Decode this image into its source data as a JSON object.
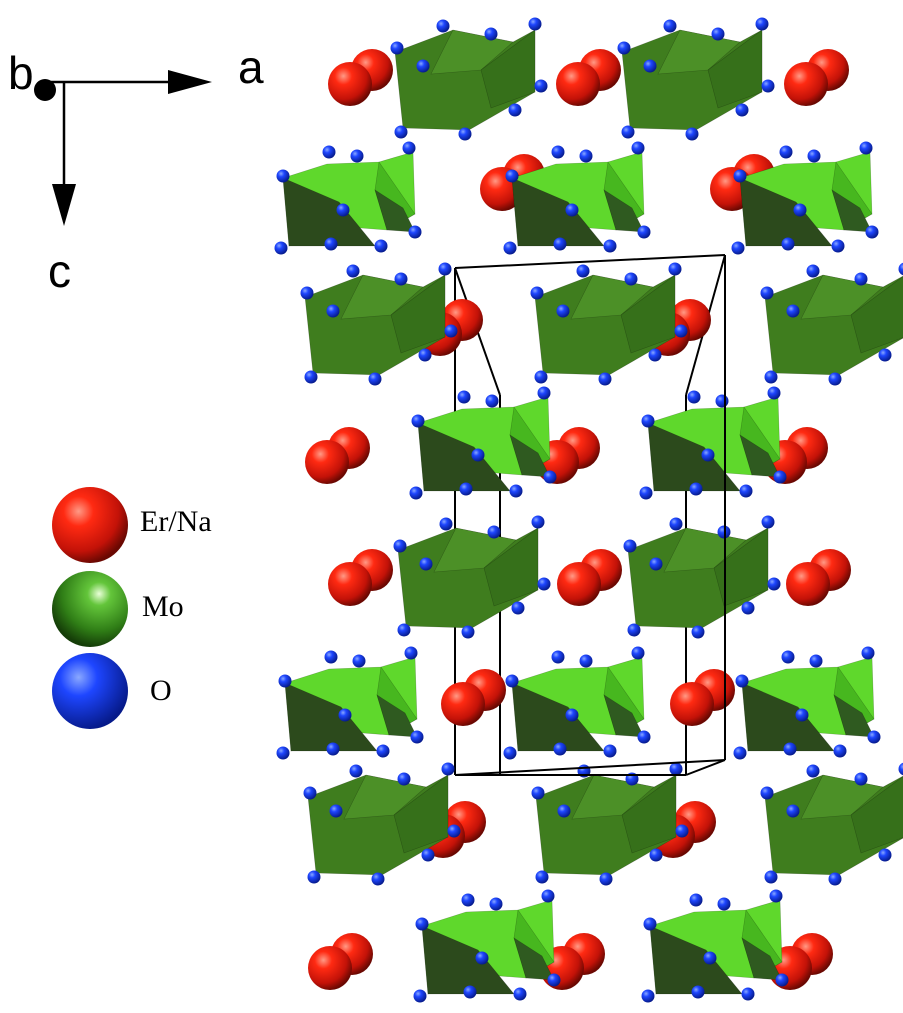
{
  "axes": {
    "b_label": "b",
    "a_label": "a",
    "c_label": "c"
  },
  "legend": {
    "items": [
      {
        "label": "Er/Na",
        "color": "#e01b0e",
        "icon": "red-sphere-icon"
      },
      {
        "label": "Mo",
        "color": "#3d8a1f",
        "icon": "green-sphere-icon"
      },
      {
        "label": "O",
        "color": "#1431e6",
        "icon": "blue-sphere-icon"
      }
    ]
  },
  "colors": {
    "er_na_atom": "#e01b0e",
    "o_atom": "#1431e6",
    "polyhedron_dark": "#3f7d1e",
    "polyhedron_light": "#5fd82c",
    "polyhedron_shadow": "#2c4a1c",
    "unit_cell_edge": "#000000"
  }
}
